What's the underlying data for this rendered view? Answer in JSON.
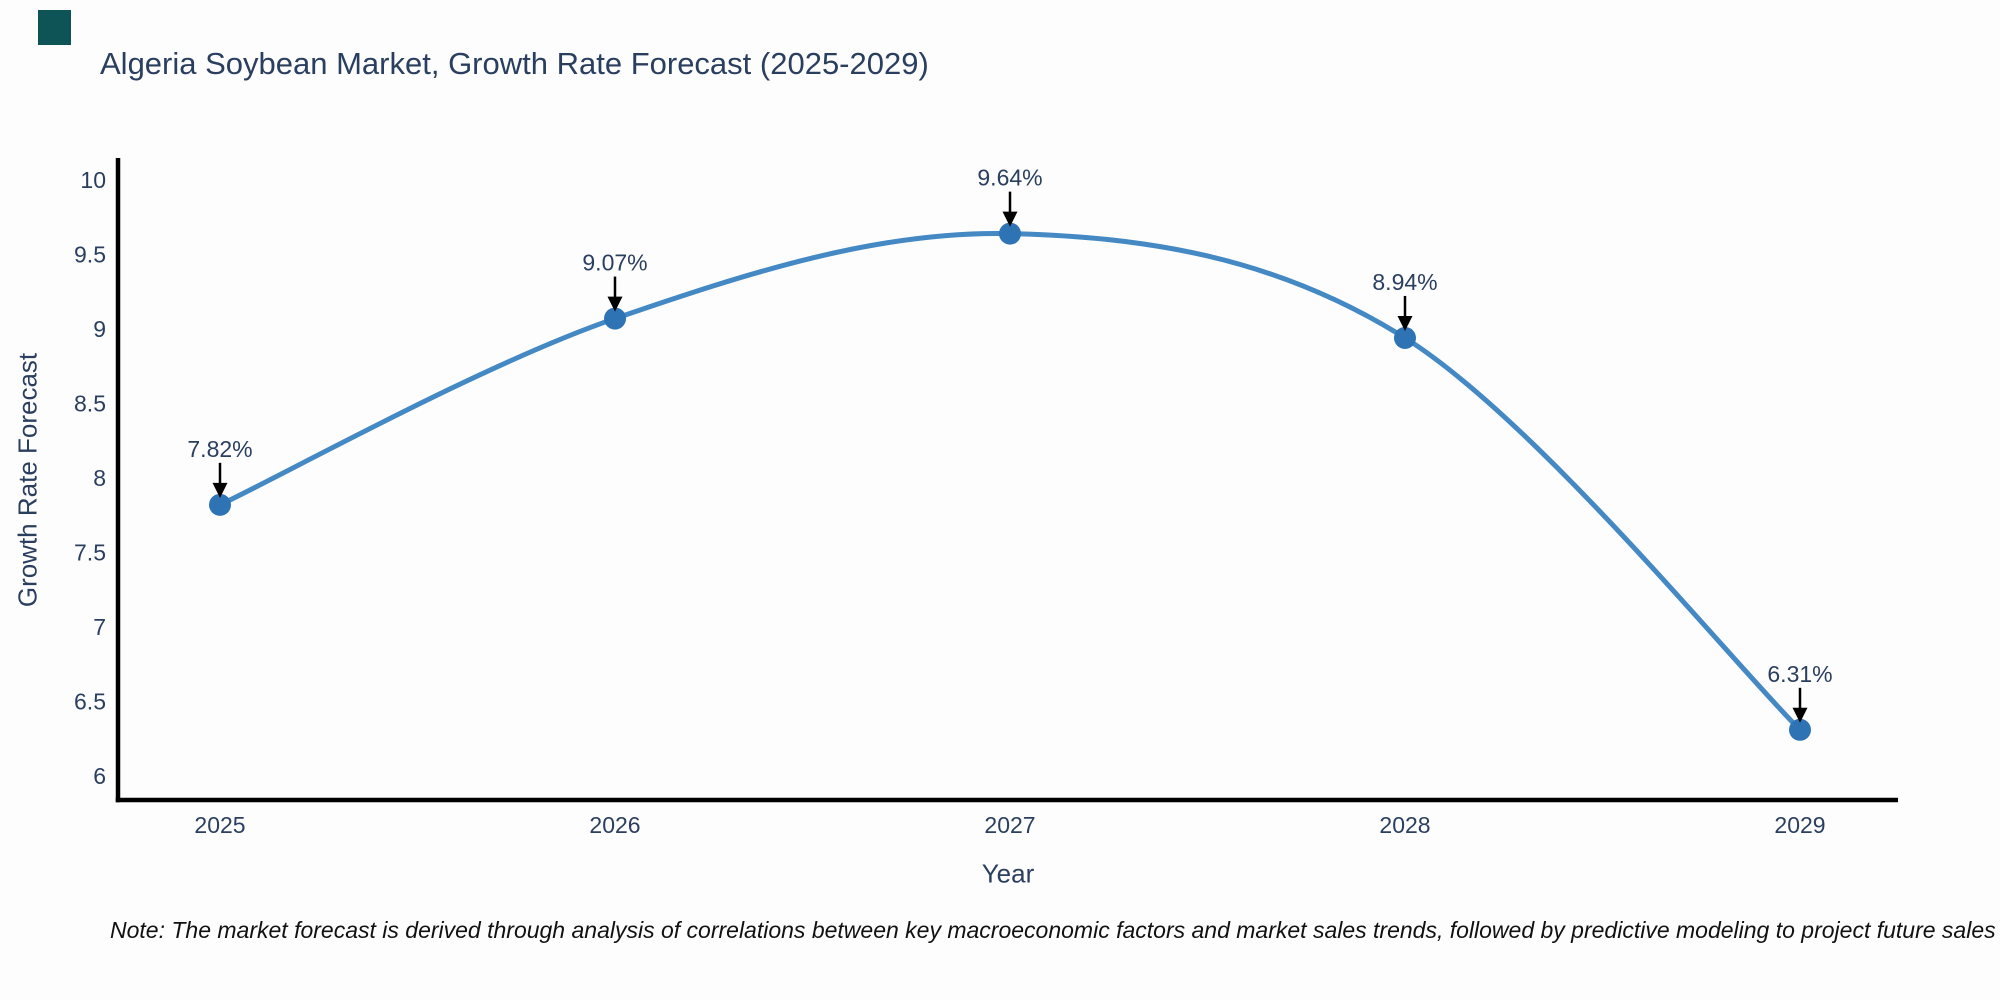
{
  "logo": {
    "color": "#0e5456"
  },
  "header": {
    "title": "Algeria Soybean Market, Growth Rate Forecast (2025-2029)"
  },
  "footnote": "Note: The market forecast is derived through analysis of correlations between key macroeconomic factors and market sales trends, followed by predictive modeling to project future sales",
  "chart_data": {
    "type": "line",
    "title": "Algeria Soybean Market, Growth Rate Forecast (2025-2029)",
    "xlabel": "Year",
    "ylabel": "Growth Rate Forecast",
    "x": [
      2025,
      2026,
      2027,
      2028,
      2029
    ],
    "categories": [
      "2025",
      "2026",
      "2027",
      "2028",
      "2029"
    ],
    "values": [
      7.82,
      9.07,
      9.64,
      8.94,
      6.31
    ],
    "point_labels": [
      "7.82%",
      "9.07%",
      "9.64%",
      "8.94%",
      "6.31%"
    ],
    "yticks": [
      6,
      6.5,
      7,
      7.5,
      8,
      8.5,
      9,
      9.5,
      10
    ],
    "ylim": [
      5.84,
      10.15
    ],
    "grid": false,
    "legend": "none",
    "line_shape": "spline",
    "colors": {
      "line": "#4489c4",
      "marker": "#2e74b5",
      "axis": "#000000",
      "text": "#2a3f5f",
      "arrow": "#000000"
    }
  }
}
